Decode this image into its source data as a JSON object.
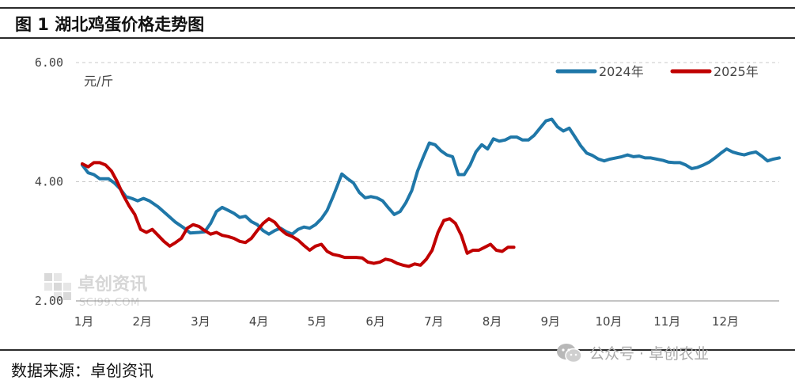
{
  "header": {
    "title": "图 1  湖北鸡蛋价格走势图"
  },
  "footer": {
    "source": "数据来源：卓创资讯",
    "wechat_label": "公众号 · 卓创农业",
    "wechat_icon": "wechat-icon"
  },
  "watermark": {
    "name": "卓创资讯",
    "domain": "SCI99.COM"
  },
  "chart_data": {
    "type": "line",
    "unit": "元/斤",
    "x_ticks": [
      "1月",
      "2月",
      "3月",
      "4月",
      "5月",
      "6月",
      "7月",
      "8月",
      "9月",
      "10月",
      "11月",
      "12月"
    ],
    "y_ticks": [
      "2.00",
      "4.00",
      "6.00"
    ],
    "ylim": [
      2.0,
      6.0
    ],
    "xlim": [
      1,
      12.95
    ],
    "grid": "horizontal dashed",
    "legend_position": "top-right",
    "series": [
      {
        "name": "2024年",
        "color": "#1f77a8",
        "points": [
          [
            1.0,
            4.28
          ],
          [
            1.1,
            4.15
          ],
          [
            1.2,
            4.12
          ],
          [
            1.3,
            4.05
          ],
          [
            1.45,
            4.05
          ],
          [
            1.55,
            3.98
          ],
          [
            1.65,
            3.88
          ],
          [
            1.75,
            3.75
          ],
          [
            1.85,
            3.72
          ],
          [
            1.95,
            3.68
          ],
          [
            2.05,
            3.72
          ],
          [
            2.15,
            3.68
          ],
          [
            2.3,
            3.58
          ],
          [
            2.45,
            3.45
          ],
          [
            2.6,
            3.32
          ],
          [
            2.75,
            3.22
          ],
          [
            2.85,
            3.14
          ],
          [
            3.0,
            3.15
          ],
          [
            3.1,
            3.16
          ],
          [
            3.2,
            3.3
          ],
          [
            3.3,
            3.5
          ],
          [
            3.4,
            3.57
          ],
          [
            3.5,
            3.52
          ],
          [
            3.6,
            3.47
          ],
          [
            3.7,
            3.4
          ],
          [
            3.8,
            3.42
          ],
          [
            3.9,
            3.33
          ],
          [
            4.0,
            3.28
          ],
          [
            4.1,
            3.18
          ],
          [
            4.2,
            3.12
          ],
          [
            4.3,
            3.18
          ],
          [
            4.4,
            3.22
          ],
          [
            4.5,
            3.16
          ],
          [
            4.6,
            3.12
          ],
          [
            4.7,
            3.2
          ],
          [
            4.8,
            3.24
          ],
          [
            4.9,
            3.22
          ],
          [
            5.0,
            3.28
          ],
          [
            5.1,
            3.38
          ],
          [
            5.2,
            3.52
          ],
          [
            5.3,
            3.75
          ],
          [
            5.38,
            3.95
          ],
          [
            5.45,
            4.13
          ],
          [
            5.55,
            4.05
          ],
          [
            5.65,
            3.98
          ],
          [
            5.75,
            3.82
          ],
          [
            5.85,
            3.73
          ],
          [
            5.95,
            3.75
          ],
          [
            6.05,
            3.73
          ],
          [
            6.15,
            3.68
          ],
          [
            6.25,
            3.56
          ],
          [
            6.35,
            3.45
          ],
          [
            6.45,
            3.5
          ],
          [
            6.55,
            3.65
          ],
          [
            6.65,
            3.85
          ],
          [
            6.75,
            4.18
          ],
          [
            6.85,
            4.42
          ],
          [
            6.95,
            4.65
          ],
          [
            7.05,
            4.62
          ],
          [
            7.15,
            4.52
          ],
          [
            7.25,
            4.45
          ],
          [
            7.35,
            4.42
          ],
          [
            7.45,
            4.12
          ],
          [
            7.55,
            4.12
          ],
          [
            7.65,
            4.28
          ],
          [
            7.75,
            4.5
          ],
          [
            7.85,
            4.62
          ],
          [
            7.95,
            4.55
          ],
          [
            8.05,
            4.72
          ],
          [
            8.15,
            4.68
          ],
          [
            8.25,
            4.7
          ],
          [
            8.35,
            4.75
          ],
          [
            8.45,
            4.75
          ],
          [
            8.55,
            4.7
          ],
          [
            8.65,
            4.7
          ],
          [
            8.75,
            4.78
          ],
          [
            8.85,
            4.9
          ],
          [
            8.95,
            5.02
          ],
          [
            9.05,
            5.05
          ],
          [
            9.15,
            4.92
          ],
          [
            9.25,
            4.85
          ],
          [
            9.35,
            4.9
          ],
          [
            9.45,
            4.75
          ],
          [
            9.55,
            4.6
          ],
          [
            9.65,
            4.48
          ],
          [
            9.75,
            4.44
          ],
          [
            9.85,
            4.38
          ],
          [
            9.95,
            4.35
          ],
          [
            10.05,
            4.38
          ],
          [
            10.15,
            4.4
          ],
          [
            10.25,
            4.42
          ],
          [
            10.35,
            4.45
          ],
          [
            10.45,
            4.42
          ],
          [
            10.55,
            4.43
          ],
          [
            10.65,
            4.4
          ],
          [
            10.75,
            4.4
          ],
          [
            10.85,
            4.38
          ],
          [
            10.95,
            4.36
          ],
          [
            11.05,
            4.33
          ],
          [
            11.15,
            4.32
          ],
          [
            11.25,
            4.32
          ],
          [
            11.35,
            4.28
          ],
          [
            11.45,
            4.22
          ],
          [
            11.55,
            4.24
          ],
          [
            11.65,
            4.28
          ],
          [
            11.75,
            4.33
          ],
          [
            11.85,
            4.4
          ],
          [
            11.95,
            4.48
          ],
          [
            12.05,
            4.55
          ],
          [
            12.15,
            4.5
          ],
          [
            12.25,
            4.47
          ],
          [
            12.35,
            4.45
          ],
          [
            12.45,
            4.48
          ],
          [
            12.55,
            4.5
          ],
          [
            12.65,
            4.43
          ],
          [
            12.75,
            4.35
          ],
          [
            12.85,
            4.38
          ],
          [
            12.95,
            4.4
          ]
        ]
      },
      {
        "name": "2025年",
        "color": "#c00000",
        "points": [
          [
            1.0,
            4.3
          ],
          [
            1.1,
            4.25
          ],
          [
            1.2,
            4.32
          ],
          [
            1.3,
            4.32
          ],
          [
            1.4,
            4.28
          ],
          [
            1.5,
            4.18
          ],
          [
            1.6,
            4.0
          ],
          [
            1.7,
            3.78
          ],
          [
            1.8,
            3.6
          ],
          [
            1.9,
            3.45
          ],
          [
            2.0,
            3.2
          ],
          [
            2.1,
            3.15
          ],
          [
            2.2,
            3.2
          ],
          [
            2.3,
            3.1
          ],
          [
            2.4,
            3.0
          ],
          [
            2.5,
            2.92
          ],
          [
            2.6,
            2.98
          ],
          [
            2.7,
            3.05
          ],
          [
            2.8,
            3.22
          ],
          [
            2.9,
            3.28
          ],
          [
            3.0,
            3.25
          ],
          [
            3.1,
            3.18
          ],
          [
            3.2,
            3.12
          ],
          [
            3.3,
            3.15
          ],
          [
            3.4,
            3.1
          ],
          [
            3.5,
            3.08
          ],
          [
            3.6,
            3.05
          ],
          [
            3.7,
            3.0
          ],
          [
            3.8,
            2.98
          ],
          [
            3.9,
            3.05
          ],
          [
            4.0,
            3.18
          ],
          [
            4.1,
            3.3
          ],
          [
            4.2,
            3.38
          ],
          [
            4.3,
            3.32
          ],
          [
            4.4,
            3.2
          ],
          [
            4.5,
            3.12
          ],
          [
            4.6,
            3.08
          ],
          [
            4.7,
            3.02
          ],
          [
            4.8,
            2.93
          ],
          [
            4.9,
            2.85
          ],
          [
            5.0,
            2.92
          ],
          [
            5.1,
            2.95
          ],
          [
            5.2,
            2.83
          ],
          [
            5.3,
            2.78
          ],
          [
            5.4,
            2.76
          ],
          [
            5.5,
            2.73
          ],
          [
            5.6,
            2.73
          ],
          [
            5.7,
            2.73
          ],
          [
            5.8,
            2.72
          ],
          [
            5.9,
            2.65
          ],
          [
            6.0,
            2.63
          ],
          [
            6.1,
            2.65
          ],
          [
            6.2,
            2.7
          ],
          [
            6.3,
            2.68
          ],
          [
            6.4,
            2.63
          ],
          [
            6.5,
            2.6
          ],
          [
            6.6,
            2.58
          ],
          [
            6.7,
            2.62
          ],
          [
            6.8,
            2.6
          ],
          [
            6.9,
            2.7
          ],
          [
            7.0,
            2.85
          ],
          [
            7.1,
            3.15
          ],
          [
            7.2,
            3.35
          ],
          [
            7.3,
            3.38
          ],
          [
            7.4,
            3.3
          ],
          [
            7.5,
            3.1
          ],
          [
            7.6,
            2.8
          ],
          [
            7.7,
            2.85
          ],
          [
            7.8,
            2.85
          ],
          [
            7.9,
            2.9
          ],
          [
            8.0,
            2.95
          ],
          [
            8.1,
            2.85
          ],
          [
            8.2,
            2.83
          ],
          [
            8.3,
            2.9
          ],
          [
            8.4,
            2.9
          ]
        ]
      }
    ]
  }
}
